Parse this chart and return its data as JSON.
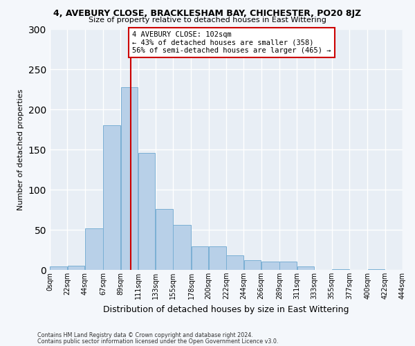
{
  "title": "4, AVEBURY CLOSE, BRACKLESHAM BAY, CHICHESTER, PO20 8JZ",
  "subtitle": "Size of property relative to detached houses in East Wittering",
  "xlabel": "Distribution of detached houses by size in East Wittering",
  "ylabel": "Number of detached properties",
  "bar_color": "#b8d0e8",
  "bar_edge_color": "#7aafd4",
  "fig_background_color": "#f4f7fb",
  "ax_background_color": "#e8eef5",
  "grid_color": "#ffffff",
  "bin_edges": [
    0,
    22,
    44,
    67,
    89,
    111,
    133,
    155,
    178,
    200,
    222,
    244,
    266,
    289,
    311,
    333,
    355,
    377,
    400,
    422,
    444
  ],
  "bin_labels": [
    "0sqm",
    "22sqm",
    "44sqm",
    "67sqm",
    "89sqm",
    "111sqm",
    "133sqm",
    "155sqm",
    "178sqm",
    "200sqm",
    "222sqm",
    "244sqm",
    "266sqm",
    "289sqm",
    "311sqm",
    "333sqm",
    "355sqm",
    "377sqm",
    "400sqm",
    "422sqm",
    "444sqm"
  ],
  "bar_heights": [
    4,
    5,
    52,
    180,
    228,
    146,
    76,
    56,
    29,
    29,
    18,
    12,
    10,
    10,
    4,
    0,
    1,
    0,
    1,
    0
  ],
  "vline_x": 102,
  "vline_color": "#cc0000",
  "annotation_text": "4 AVEBURY CLOSE: 102sqm\n← 43% of detached houses are smaller (358)\n56% of semi-detached houses are larger (465) →",
  "annotation_box_color": "#ffffff",
  "annotation_box_edge_color": "#cc0000",
  "ylim": [
    0,
    300
  ],
  "yticks": [
    0,
    50,
    100,
    150,
    200,
    250,
    300
  ],
  "footer_line1": "Contains HM Land Registry data © Crown copyright and database right 2024.",
  "footer_line2": "Contains public sector information licensed under the Open Government Licence v3.0."
}
